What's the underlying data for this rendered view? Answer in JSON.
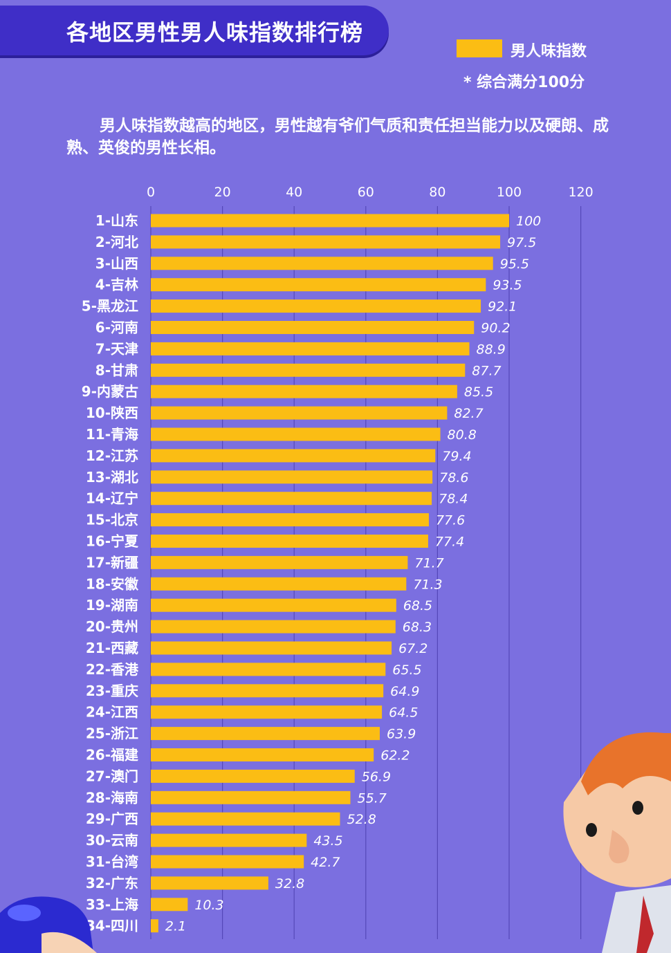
{
  "header": {
    "title": "各地区男性男人味指数排行榜",
    "legend_label": "男人味指数",
    "legend_note": "* 综合满分100分",
    "description": "男人味指数越高的地区，男性越有爷们气质和责任担当能力以及硬朗、成熟、英俊的男性长相。"
  },
  "colors": {
    "background": "#7b6fe0",
    "banner": "#3f2ec7",
    "bar": "#fbbd14",
    "text": "#ffffff"
  },
  "chart_data": {
    "type": "bar",
    "orientation": "horizontal",
    "title": "各地区男性男人味指数排行榜",
    "categories": [
      "1-山东",
      "2-河北",
      "3-山西",
      "4-吉林",
      "5-黑龙江",
      "6-河南",
      "7-天津",
      "8-甘肃",
      "9-内蒙古",
      "10-陕西",
      "11-青海",
      "12-江苏",
      "13-湖北",
      "14-辽宁",
      "15-北京",
      "16-宁夏",
      "17-新疆",
      "18-安徽",
      "19-湖南",
      "20-贵州",
      "21-西藏",
      "22-香港",
      "23-重庆",
      "24-江西",
      "25-浙江",
      "26-福建",
      "27-澳门",
      "28-海南",
      "29-广西",
      "30-云南",
      "31-台湾",
      "32-广东",
      "33-上海",
      "34-四川"
    ],
    "series": [
      {
        "name": "男人味指数",
        "values": [
          100,
          97.5,
          95.5,
          93.5,
          92.1,
          90.2,
          88.9,
          87.7,
          85.5,
          82.7,
          80.8,
          79.4,
          78.6,
          78.4,
          77.6,
          77.4,
          71.7,
          71.3,
          68.5,
          68.3,
          67.2,
          65.5,
          64.9,
          64.5,
          63.9,
          62.2,
          56.9,
          55.7,
          52.8,
          43.5,
          42.7,
          32.8,
          10.3,
          2.1
        ]
      }
    ],
    "xlim": [
      0,
      120
    ],
    "xticks": [
      0,
      20,
      40,
      60,
      80,
      100,
      120
    ],
    "axis_position": "top",
    "grid": true,
    "legend": "top-right"
  }
}
